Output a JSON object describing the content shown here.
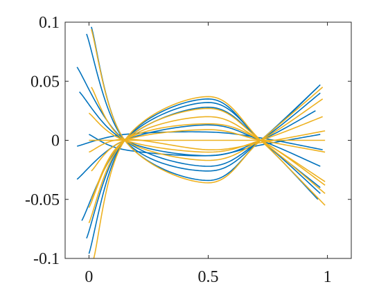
{
  "chart_data": {
    "type": "line",
    "title": "",
    "xlabel": "",
    "ylabel": "",
    "xlim": [
      -0.1,
      1.1
    ],
    "ylim": [
      -0.1,
      0.1
    ],
    "xticks": [
      {
        "value": 0,
        "label": "0"
      },
      {
        "value": 0.5,
        "label": "0.5"
      },
      {
        "value": 1,
        "label": "1"
      }
    ],
    "yticks": [
      {
        "value": 0.1,
        "label": "0.1"
      },
      {
        "value": 0.05,
        "label": "0.05"
      },
      {
        "value": 0,
        "label": "0"
      },
      {
        "value": -0.05,
        "label": "-0.05"
      },
      {
        "value": -0.1,
        "label": "-0.1"
      }
    ],
    "grid": false,
    "legend": "none",
    "colors": {
      "blue": "#0072BD",
      "yellow": "#EDB120"
    },
    "series": [
      {
        "color": "blue",
        "x": [
          -0.01,
          0.15,
          0.5,
          0.72,
          0.97
        ],
        "y": [
          0.09,
          0.0,
          -0.026,
          0.0,
          0.047
        ]
      },
      {
        "color": "blue",
        "x": [
          0.01,
          0.15,
          0.5,
          0.72,
          0.96
        ],
        "y": [
          0.096,
          0.0,
          -0.034,
          0.0,
          0.045
        ]
      },
      {
        "color": "blue",
        "x": [
          -0.05,
          0.15,
          0.5,
          0.72,
          0.97
        ],
        "y": [
          0.062,
          0.0,
          -0.022,
          0.0,
          0.04
        ]
      },
      {
        "color": "blue",
        "x": [
          -0.04,
          0.15,
          0.5,
          0.72,
          0.95
        ],
        "y": [
          0.041,
          0.0,
          -0.013,
          0.0,
          0.025
        ]
      },
      {
        "color": "blue",
        "x": [
          -0.03,
          0.15,
          0.5,
          0.72,
          0.97
        ],
        "y": [
          -0.068,
          0.0,
          0.028,
          0.0,
          -0.045
        ]
      },
      {
        "color": "blue",
        "x": [
          -0.01,
          0.15,
          0.5,
          0.72,
          0.96
        ],
        "y": [
          -0.083,
          0.0,
          0.032,
          0.0,
          -0.05
        ]
      },
      {
        "color": "blue",
        "x": [
          0.0,
          0.15,
          0.5,
          0.72,
          0.97
        ],
        "y": [
          -0.096,
          0.0,
          0.035,
          0.0,
          -0.04
        ]
      },
      {
        "color": "blue",
        "x": [
          -0.05,
          0.15,
          0.5,
          0.72,
          0.97
        ],
        "y": [
          -0.033,
          0.0,
          0.013,
          0.0,
          -0.022
        ]
      },
      {
        "color": "blue",
        "x": [
          -0.05,
          0.15,
          0.5,
          0.72,
          0.98
        ],
        "y": [
          -0.005,
          0.005,
          0.007,
          0.002,
          -0.008
        ]
      },
      {
        "color": "blue",
        "x": [
          0.0,
          0.15,
          0.5,
          0.72,
          0.97
        ],
        "y": [
          0.005,
          -0.008,
          -0.013,
          -0.004,
          0.005
        ]
      },
      {
        "color": "yellow",
        "x": [
          0.01,
          0.15,
          0.5,
          0.72,
          0.98
        ],
        "y": [
          0.094,
          0.0,
          -0.036,
          0.0,
          0.045
        ]
      },
      {
        "color": "yellow",
        "x": [
          0.01,
          0.15,
          0.5,
          0.72,
          0.98
        ],
        "y": [
          0.045,
          0.0,
          -0.017,
          0.0,
          0.035
        ]
      },
      {
        "color": "yellow",
        "x": [
          0.0,
          0.15,
          0.5,
          0.72,
          0.98
        ],
        "y": [
          0.023,
          0.0,
          -0.01,
          0.0,
          0.02
        ]
      },
      {
        "color": "yellow",
        "x": [
          0.02,
          0.15,
          0.5,
          0.72,
          0.99
        ],
        "y": [
          -0.1,
          0.0,
          0.037,
          0.0,
          -0.055
        ]
      },
      {
        "color": "yellow",
        "x": [
          0.0,
          0.15,
          0.5,
          0.72,
          0.99
        ],
        "y": [
          -0.07,
          0.0,
          0.027,
          0.0,
          -0.045
        ]
      },
      {
        "color": "yellow",
        "x": [
          0.0,
          0.15,
          0.5,
          0.72,
          0.99
        ],
        "y": [
          -0.057,
          0.0,
          0.02,
          0.0,
          -0.035
        ]
      },
      {
        "color": "yellow",
        "x": [
          0.01,
          0.15,
          0.5,
          0.72,
          0.99
        ],
        "y": [
          -0.05,
          0.0,
          0.014,
          0.0,
          -0.038
        ]
      },
      {
        "color": "yellow",
        "x": [
          0.01,
          0.15,
          0.5,
          0.72,
          0.99
        ],
        "y": [
          -0.026,
          0.0,
          0.009,
          0.0,
          -0.01
        ]
      },
      {
        "color": "yellow",
        "x": [
          0.0,
          0.15,
          0.5,
          0.72,
          0.99
        ],
        "y": [
          0.0,
          0.0,
          0.0,
          0.0,
          0.0
        ]
      },
      {
        "color": "yellow",
        "x": [
          0.0,
          0.15,
          0.5,
          0.72,
          0.99
        ],
        "y": [
          -0.01,
          0.001,
          -0.008,
          -0.002,
          0.008
        ]
      }
    ]
  }
}
